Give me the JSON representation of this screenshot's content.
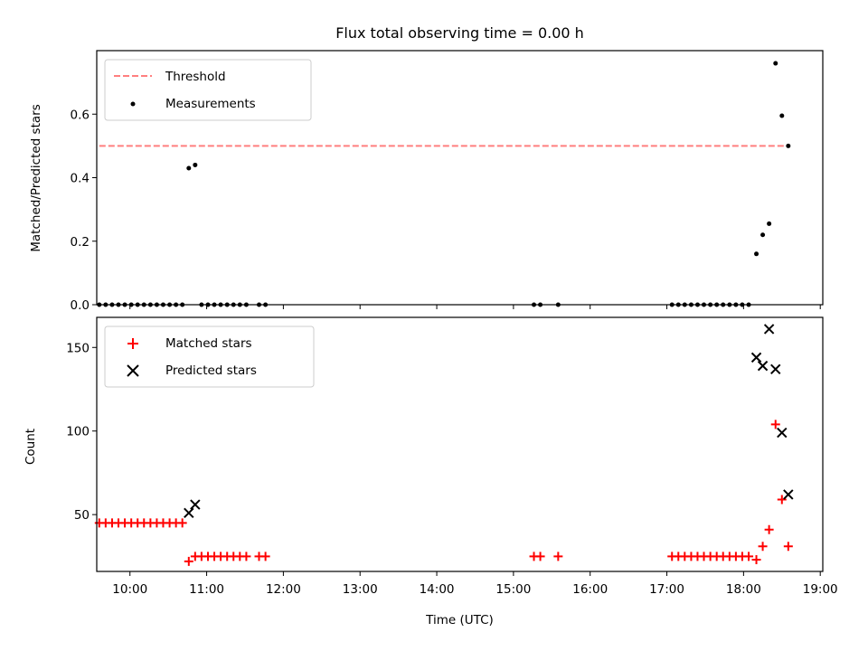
{
  "chart_data": [
    {
      "type": "scatter",
      "title": "Flux total observing time = 0.00 h",
      "xlabel": "",
      "ylabel": "Matched/Predicted stars",
      "xlim": [
        9.567,
        19.033
      ],
      "ylim": [
        0,
        0.8
      ],
      "yticks": [
        0.0,
        0.2,
        0.4,
        0.6
      ],
      "ytick_labels": [
        "0.0",
        "0.2",
        "0.4",
        "0.6"
      ],
      "xticks": [
        10,
        11,
        12,
        13,
        14,
        15,
        16,
        17,
        18,
        19
      ],
      "grid": false,
      "legend_position": "top-left",
      "series": [
        {
          "name": "Threshold",
          "kind": "dashed-line",
          "color": "#ff7f7f",
          "x": [
            9.6,
            18.6
          ],
          "y": [
            0.5,
            0.5
          ]
        },
        {
          "name": "Measurements",
          "kind": "points",
          "color": "#000000",
          "x": [
            9.6,
            9.683,
            9.767,
            9.85,
            9.933,
            10.017,
            10.1,
            10.183,
            10.267,
            10.35,
            10.433,
            10.517,
            10.6,
            10.683,
            10.767,
            10.85,
            10.933,
            11.017,
            11.1,
            11.183,
            11.267,
            11.35,
            11.433,
            11.517,
            11.683,
            11.767,
            15.267,
            15.35,
            15.583,
            17.067,
            17.15,
            17.233,
            17.317,
            17.4,
            17.483,
            17.567,
            17.65,
            17.733,
            17.817,
            17.9,
            17.983,
            18.067,
            18.167,
            18.25,
            18.333,
            18.417,
            18.5,
            18.583
          ],
          "y": [
            0,
            0,
            0,
            0,
            0,
            0,
            0,
            0,
            0,
            0,
            0,
            0,
            0,
            0,
            0.43,
            0.44,
            0,
            0,
            0,
            0,
            0,
            0,
            0,
            0,
            0,
            0,
            0,
            0,
            0,
            0,
            0,
            0,
            0,
            0,
            0,
            0,
            0,
            0,
            0,
            0,
            0,
            0,
            0.16,
            0.22,
            0.255,
            0.76,
            0.595,
            0.5
          ]
        }
      ]
    },
    {
      "type": "scatter",
      "title": "",
      "xlabel": "Time (UTC)",
      "ylabel": "Count",
      "xlim": [
        9.567,
        19.033
      ],
      "ylim": [
        16,
        168
      ],
      "yticks": [
        50,
        100,
        150
      ],
      "ytick_labels": [
        "50",
        "100",
        "150"
      ],
      "xticks": [
        10,
        11,
        12,
        13,
        14,
        15,
        16,
        17,
        18,
        19
      ],
      "xtick_labels": [
        "10:00",
        "11:00",
        "12:00",
        "13:00",
        "14:00",
        "15:00",
        "16:00",
        "17:00",
        "18:00",
        "19:00"
      ],
      "grid": false,
      "legend_position": "top-left",
      "series": [
        {
          "name": "Matched stars",
          "marker": "plus",
          "color": "#ff0000",
          "x": [
            9.6,
            9.683,
            9.767,
            9.85,
            9.933,
            10.017,
            10.1,
            10.183,
            10.267,
            10.35,
            10.433,
            10.517,
            10.6,
            10.683,
            10.767,
            10.85,
            10.933,
            11.017,
            11.1,
            11.183,
            11.267,
            11.35,
            11.433,
            11.517,
            11.683,
            11.767,
            15.267,
            15.35,
            15.583,
            17.067,
            17.15,
            17.233,
            17.317,
            17.4,
            17.483,
            17.567,
            17.65,
            17.733,
            17.817,
            17.9,
            17.983,
            18.067,
            18.167,
            18.25,
            18.333,
            18.417,
            18.5,
            18.583
          ],
          "y": [
            45,
            45,
            45,
            45,
            45,
            45,
            45,
            45,
            45,
            45,
            45,
            45,
            45,
            45,
            22,
            25,
            25,
            25,
            25,
            25,
            25,
            25,
            25,
            25,
            25,
            25,
            25,
            25,
            25,
            25,
            25,
            25,
            25,
            25,
            25,
            25,
            25,
            25,
            25,
            25,
            25,
            25,
            23,
            31,
            41,
            104,
            59,
            31
          ]
        },
        {
          "name": "Predicted stars",
          "marker": "x",
          "color": "#000000",
          "x": [
            10.767,
            10.85,
            18.167,
            18.25,
            18.333,
            18.417,
            18.5,
            18.583
          ],
          "y": [
            51,
            56,
            144,
            139,
            161,
            137,
            99,
            62
          ]
        }
      ]
    }
  ]
}
